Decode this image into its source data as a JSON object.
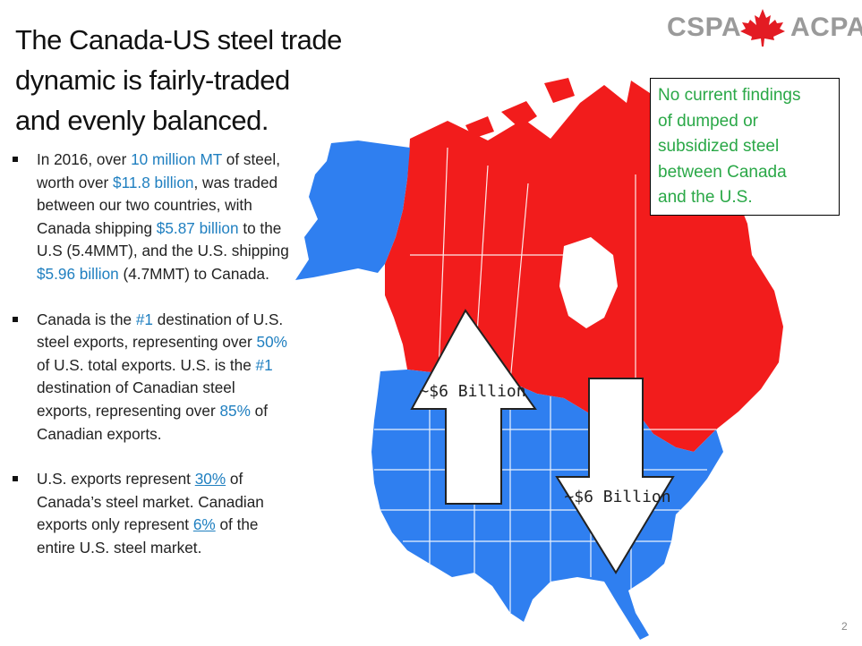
{
  "title": {
    "line1": "The Canada-US steel trade",
    "line2": "dynamic is fairly-traded",
    "line3": "and evenly balanced."
  },
  "logo": {
    "left": "CSPA",
    "right": "ACPA",
    "leaf": "maple-leaf-icon",
    "leaf_color": "#e31b23"
  },
  "callout": {
    "line1": "No current findings",
    "line2": "of dumped or",
    "line3": "subsidized steel",
    "line4": "between Canada",
    "line5": "and the U.S."
  },
  "bullet1": {
    "p1": "In 2016, over ",
    "h1": "10 million MT",
    "p2": " of steel, worth over ",
    "h2": "$11.8 billion",
    "p3": ", was traded between our two countries, with Canada shipping ",
    "h3": "$5.87 billion",
    "p4": " to the U.S (5.4MMT), and the U.S. shipping ",
    "h4": "$5.96 billion",
    "p5": " (4.7MMT) to Canada."
  },
  "bullet2": {
    "p1": "Canada is the ",
    "h1": "#1",
    "p2": " destination of U.S. steel exports, representing over ",
    "h2": "50%",
    "p3": " of U.S. total exports. U.S. is the ",
    "h3": "#1",
    "p4": " destination of Canadian steel exports, representing over ",
    "h4": "85%",
    "p5": " of Canadian exports."
  },
  "bullet3": {
    "p1": "U.S. exports represent ",
    "h1": "30%",
    "p2": " of Canada’s steel market. Canadian exports only represent ",
    "h2": "6%",
    "p3": " of the entire U.S. steel market."
  },
  "map": {
    "canada_color": "#f21c1c",
    "us_color": "#2f7ff0",
    "border_color": "#ffffff",
    "arrow_up_label": "~$6 Billion",
    "arrow_down_label": "~$6 Billion"
  },
  "highlight_color": "#1f7fc0",
  "callout_color": "#2aa847",
  "page_number": "2"
}
